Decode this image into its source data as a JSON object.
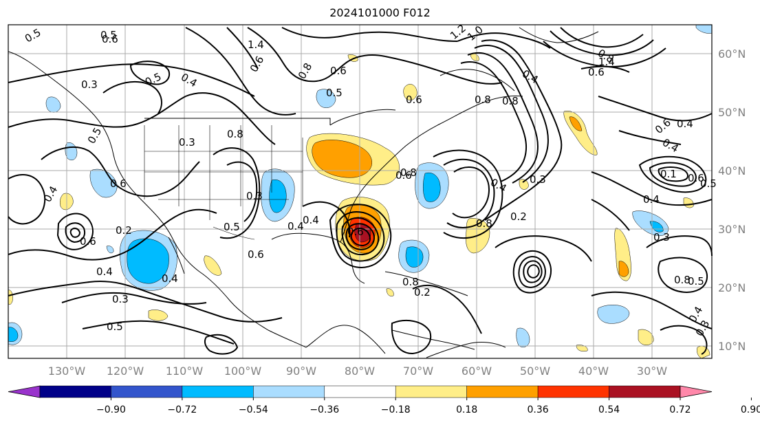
{
  "title": "2024101000 F012",
  "map": {
    "lon_labels": [
      "130°W",
      "120°W",
      "110°W",
      "100°W",
      "90°W",
      "80°W",
      "70°W",
      "60°W",
      "50°W",
      "40°W",
      "30°W"
    ],
    "lat_labels": [
      "60°N",
      "50°N",
      "40°N",
      "30°N",
      "20°N",
      "10°N"
    ],
    "contour_labels": [
      "0.5",
      "0.6",
      "0.5",
      "1.4",
      "1.2",
      "1.0",
      "0.6",
      "0.4",
      "0.5",
      "0.8",
      "0.6",
      "0.8",
      "0.5",
      "0.4",
      "0.3",
      "0.8",
      "0.5",
      "0.3",
      "0.4",
      "0.6",
      "0.2",
      "0.6",
      "0.8",
      "0.8",
      "0.6",
      "0.5",
      "0.3",
      "0.6",
      "0.4",
      "0.4",
      "0.4",
      "0.3",
      "0.5",
      "0.2",
      "0.3",
      "0.2",
      "0.4",
      "0.8",
      "0.6",
      "0.8",
      "0.1",
      "0.6",
      "0.5",
      "0.4",
      "0.6",
      "0.4",
      "0.3",
      "0.4",
      "1.4",
      "0.8",
      "0.5",
      "0.4",
      "0.3",
      "0.8",
      "0.6",
      "0.4",
      "0.6"
    ]
  },
  "colorbar": {
    "tick_labels": [
      "−0.90",
      "−0.72",
      "−0.54",
      "−0.36",
      "−0.18",
      "0.18",
      "0.36",
      "0.54",
      "0.72",
      "0.90"
    ],
    "colors": [
      "#9933cc",
      "#000088",
      "#3355cc",
      "#00bbff",
      "#aaddff",
      "#ffffff",
      "#ffee88",
      "#ffa000",
      "#ff3300",
      "#aa1122",
      "#ff88aa"
    ]
  },
  "colors": {
    "neg_light": "#aaddff",
    "neg_mid": "#00bbff",
    "pos_light": "#ffee88",
    "pos_mid": "#ffa000",
    "pos_high": "#ff3300",
    "pos_dark": "#aa1122"
  }
}
